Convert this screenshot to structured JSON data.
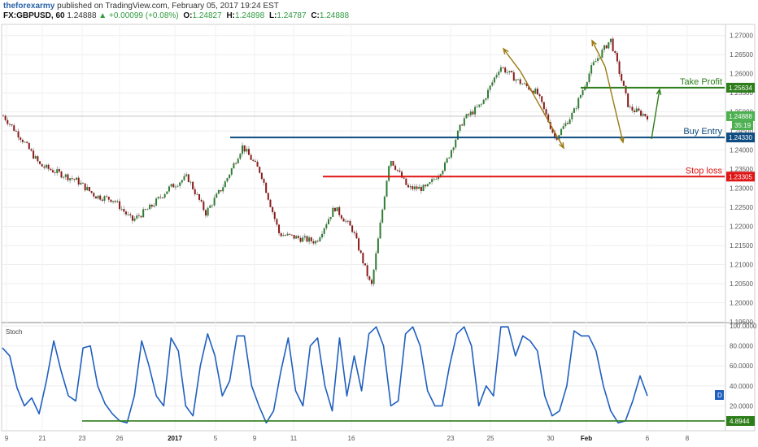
{
  "header": {
    "publisher": "theforexarmy",
    "published_text": "published on TradingView.com, February 05, 2017 19:24 EST",
    "symbol": "FX:GBPUSD, 60",
    "last": "1.24888",
    "change": "+0.00099 (+0.08%)",
    "open_label": "O:",
    "open": "1.24827",
    "high_label": "H:",
    "high": "1.24898",
    "low_label": "L:",
    "low": "1.24787",
    "close_label": "C:",
    "close": "1.24888"
  },
  "chart_data": [
    {
      "type": "candlestick",
      "symbol": "GBPUSD",
      "timeframe": "60",
      "ylim": [
        1.195,
        1.2725
      ],
      "y_ticks": [
        "1.27000",
        "1.26500",
        "1.26000",
        "1.25500",
        "1.25000",
        "1.24500",
        "1.24000",
        "1.23500",
        "1.23000",
        "1.22500",
        "1.22000",
        "1.21500",
        "1.21000",
        "1.20500",
        "1.20000",
        "1.19500"
      ],
      "x_ticks": [
        "9",
        "21",
        "23",
        "26",
        "2017",
        "5",
        "9",
        "11",
        "16",
        "23",
        "25",
        "30",
        "Feb",
        "6",
        "8"
      ],
      "close_path": [
        [
          "Dec 19",
          1.249
        ],
        [
          "Dec 20",
          1.243
        ],
        [
          "Dec 21",
          1.236
        ],
        [
          "Dec 22",
          1.234
        ],
        [
          "Dec 23",
          1.232
        ],
        [
          "Dec 26",
          1.228
        ],
        [
          "Dec 27",
          1.227
        ],
        [
          "Dec 28",
          1.2215
        ],
        [
          "Dec 29",
          1.225
        ],
        [
          "Dec 30",
          1.23
        ],
        [
          "Jan 2",
          1.233
        ],
        [
          "Jan 3",
          1.2235
        ],
        [
          "Jan 4",
          1.231
        ],
        [
          "Jan 5",
          1.241
        ],
        [
          "Jan 6",
          1.234
        ],
        [
          "Jan 9",
          1.218
        ],
        [
          "Jan 10",
          1.217
        ],
        [
          "Jan 11",
          1.216
        ],
        [
          "Jan 12",
          1.225
        ],
        [
          "Jan 13",
          1.219
        ],
        [
          "Jan 16",
          1.204
        ],
        [
          "Jan 17",
          1.238
        ],
        [
          "Jan 18",
          1.23
        ],
        [
          "Jan 19",
          1.23
        ],
        [
          "Jan 20",
          1.236
        ],
        [
          "Jan 23",
          1.248
        ],
        [
          "Jan 24",
          1.252
        ],
        [
          "Jan 25",
          1.262
        ],
        [
          "Jan 26",
          1.258
        ],
        [
          "Jan 27",
          1.255
        ],
        [
          "Jan 30",
          1.243
        ],
        [
          "Jan 31",
          1.25
        ],
        [
          "Feb 1",
          1.262
        ],
        [
          "Feb 2",
          1.269
        ],
        [
          "Feb 3",
          1.251
        ],
        [
          "Feb 3 late",
          1.2489
        ]
      ],
      "current_price": {
        "value": 1.24888,
        "label": "1.24888",
        "countdown": "35:19"
      },
      "levels": [
        {
          "name": "Take Profit",
          "value": 1.25634,
          "label": "1.25634",
          "color": "#2e7d1b"
        },
        {
          "name": "Buy Entry",
          "value": 1.2433,
          "label": "1.24330",
          "color": "#0f4c81"
        },
        {
          "name": "Stop loss",
          "value": 1.23305,
          "label": "1.23305",
          "color": "#e01515"
        }
      ],
      "colors": {
        "bull": "#2e7d32",
        "bear": "#8b1a1a",
        "wick": "#777777",
        "arrow_swing": "#9b7a10",
        "arrow_target": "#2e7d1b"
      }
    },
    {
      "type": "line",
      "name": "Stoch",
      "ylim": [
        0,
        100
      ],
      "y_ticks": [
        "100.0000",
        "80.0000",
        "60.0000",
        "40.0000",
        "20.0000"
      ],
      "level": {
        "value": 4.8944,
        "label": "4.8944"
      },
      "last_marker": "D",
      "color": "#1f5fbf",
      "level_color": "#2e7d1b"
    }
  ]
}
